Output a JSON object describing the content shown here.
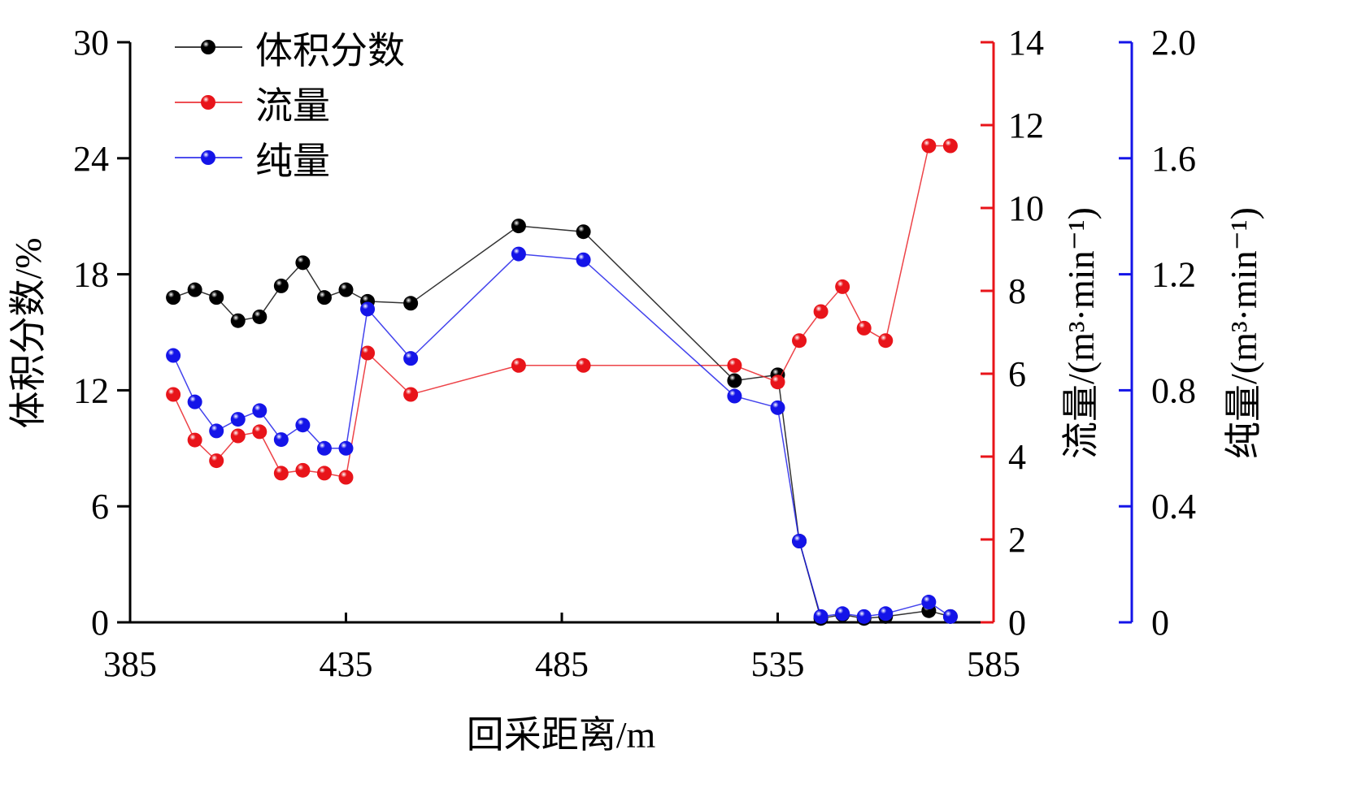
{
  "chart_data": {
    "type": "line",
    "xlabel": "回采距离/m",
    "xlim": [
      385,
      585
    ],
    "xticks": [
      "385",
      "435",
      "485",
      "535",
      "585"
    ],
    "axes": [
      {
        "id": "left",
        "label": "体积分数/%",
        "ylim": [
          0,
          30
        ],
        "ticks": [
          "0",
          "6",
          "12",
          "18",
          "24",
          "30"
        ],
        "color": "#000000"
      },
      {
        "id": "red",
        "label": "流量/(m³·min⁻¹)",
        "ylim": [
          0,
          14
        ],
        "ticks": [
          "0",
          "2",
          "4",
          "6",
          "8",
          "10",
          "12",
          "14"
        ],
        "color": "#e8141a"
      },
      {
        "id": "blue",
        "label": "纯量/(m³·min⁻¹)",
        "ylim": [
          0,
          2.0
        ],
        "ticks": [
          "0",
          "0.4",
          "0.8",
          "1.2",
          "1.6",
          "2.0"
        ],
        "color": "#1414e8"
      }
    ],
    "legend_position": "top-left",
    "series": [
      {
        "name": "体积分数",
        "axis": "left",
        "color": "#000000",
        "x": [
          395,
          400,
          405,
          410,
          415,
          420,
          425,
          430,
          435,
          440,
          450,
          475,
          490,
          525,
          535,
          540,
          545,
          550,
          555,
          560,
          570,
          575
        ],
        "y": [
          16.8,
          17.2,
          16.8,
          15.6,
          15.8,
          17.4,
          18.6,
          16.8,
          17.2,
          16.6,
          16.5,
          20.5,
          20.2,
          12.5,
          12.8,
          4.2,
          0.2,
          0.4,
          0.2,
          0.3,
          0.6,
          0.3
        ]
      },
      {
        "name": "流量",
        "axis": "red",
        "color": "#e8141a",
        "x": [
          395,
          400,
          405,
          410,
          415,
          420,
          425,
          430,
          435,
          440,
          450,
          475,
          490,
          525,
          535,
          540,
          545,
          550,
          555,
          560,
          570,
          575
        ],
        "y": [
          5.5,
          4.4,
          3.9,
          4.5,
          4.6,
          3.6,
          3.67,
          3.6,
          3.5,
          6.5,
          5.5,
          6.2,
          6.2,
          6.2,
          5.8,
          6.8,
          7.5,
          8.1,
          7.1,
          6.8,
          11.5,
          11.5
        ]
      },
      {
        "name": "纯量",
        "axis": "blue",
        "color": "#1414e8",
        "x": [
          395,
          400,
          405,
          410,
          415,
          420,
          425,
          430,
          435,
          440,
          450,
          475,
          490,
          525,
          535,
          540,
          545,
          550,
          555,
          560,
          570,
          575
        ],
        "y": [
          0.92,
          0.76,
          0.66,
          0.7,
          0.73,
          0.63,
          0.68,
          0.6,
          0.6,
          1.08,
          0.91,
          1.27,
          1.25,
          0.78,
          0.74,
          0.28,
          0.02,
          0.03,
          0.02,
          0.03,
          0.07,
          0.02
        ]
      }
    ]
  }
}
